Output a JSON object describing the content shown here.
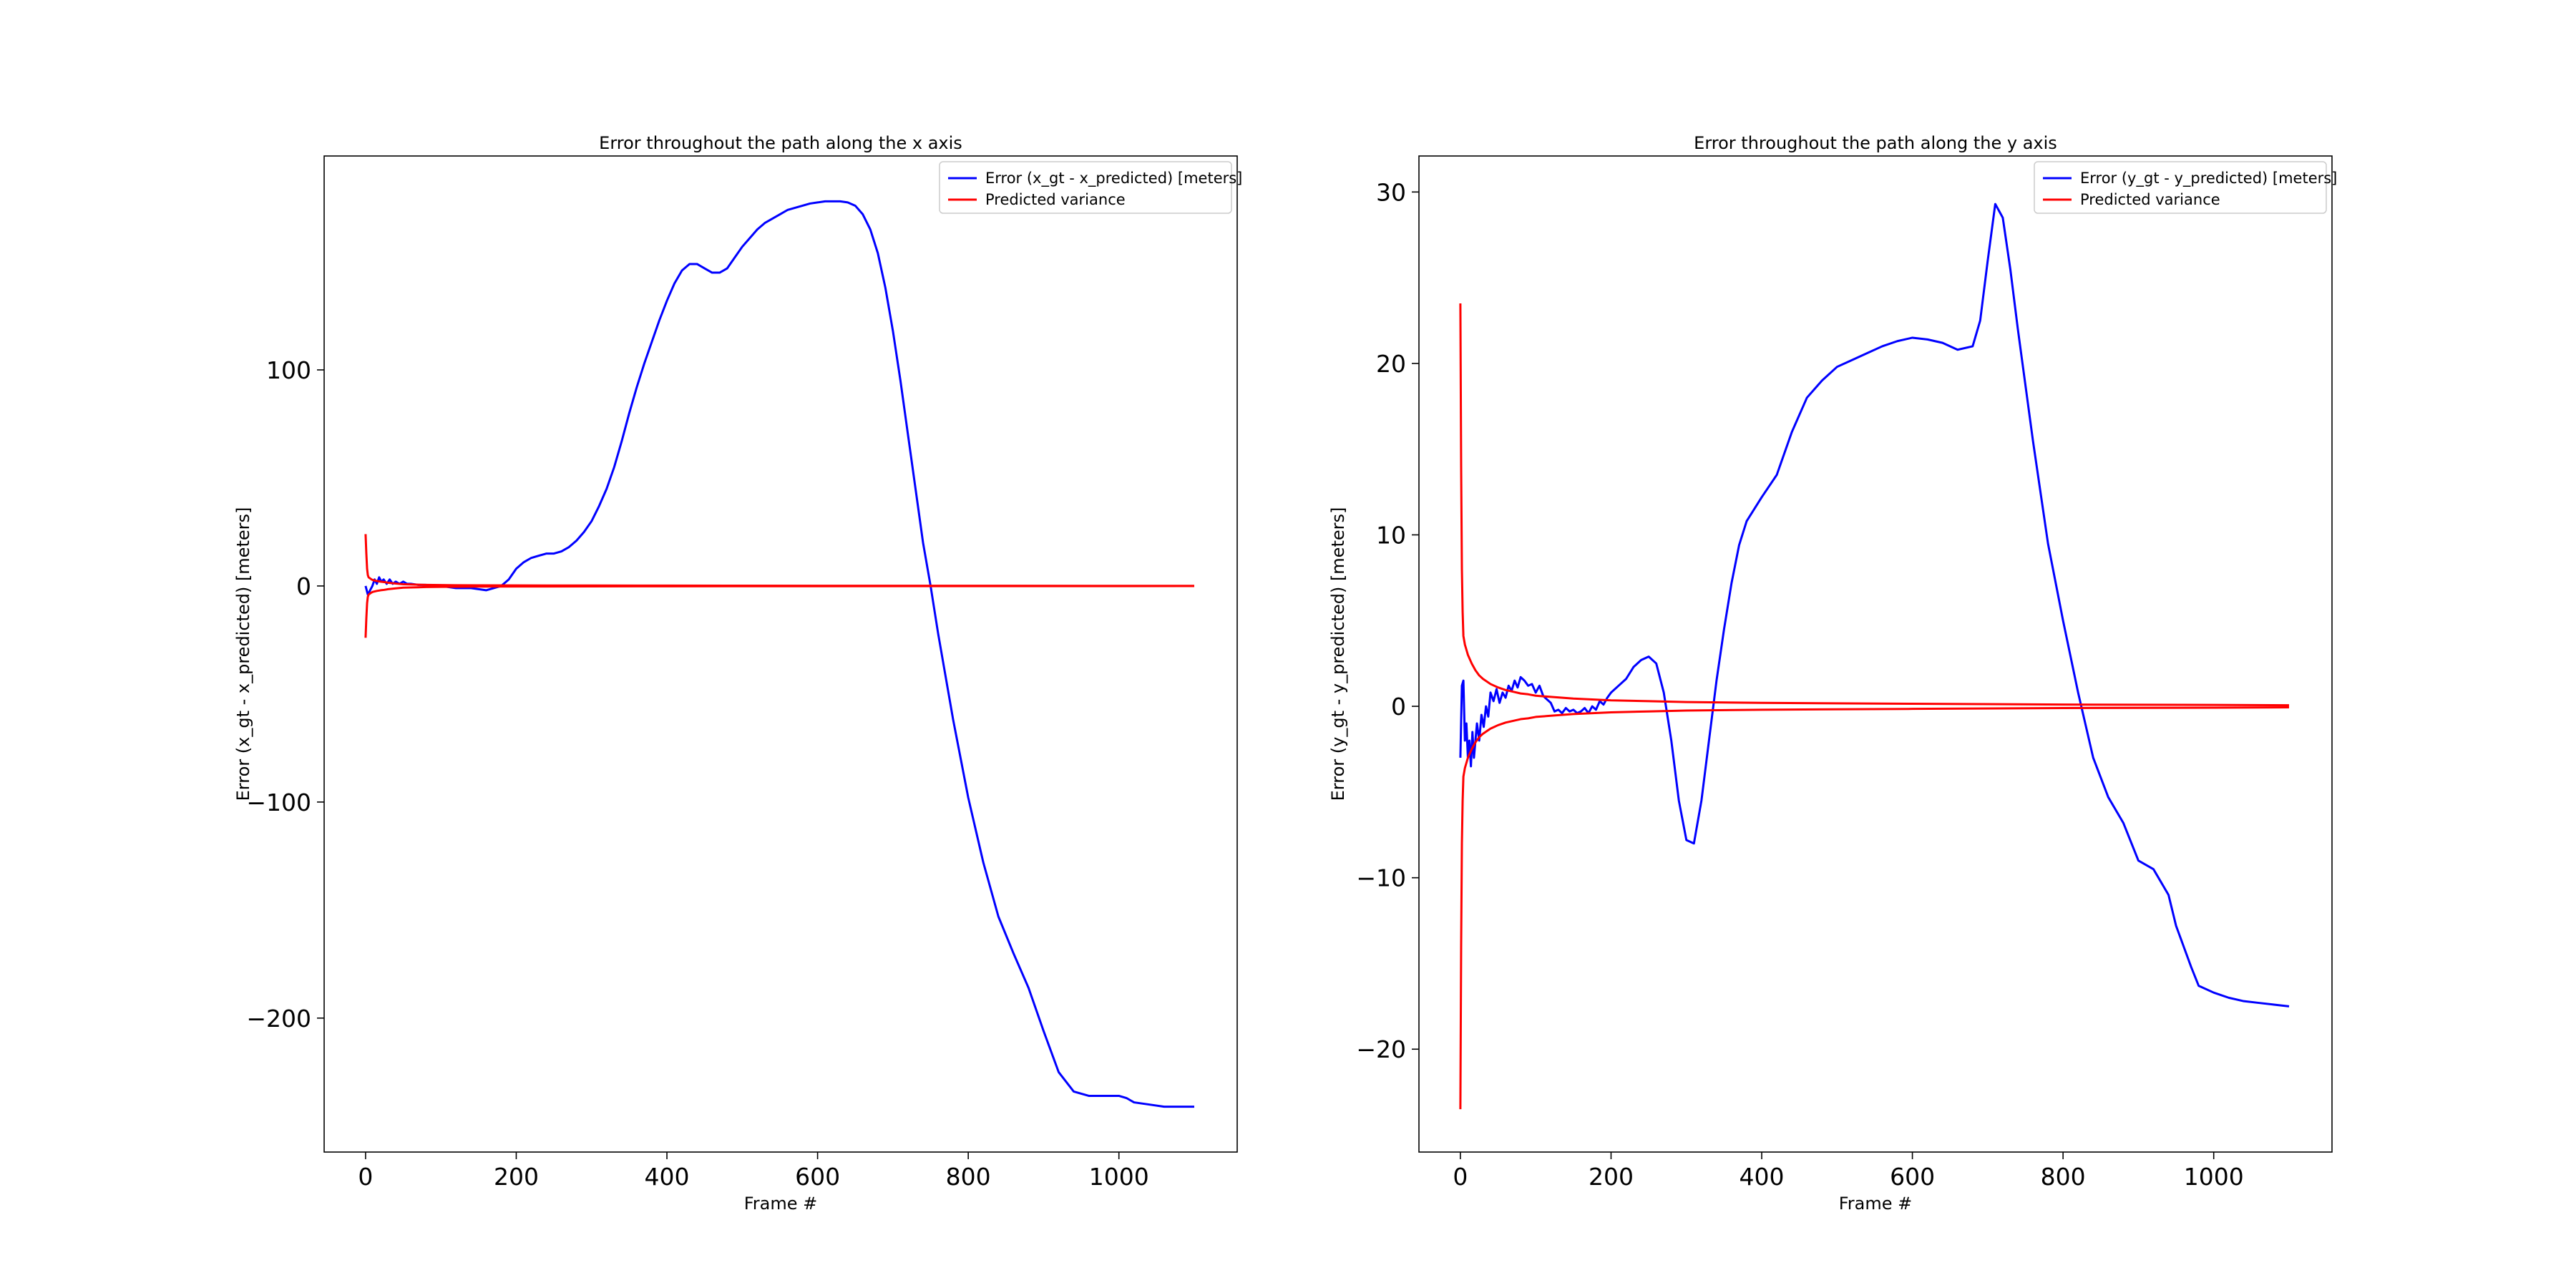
{
  "figure": {
    "background": "#ffffff"
  },
  "chart_data": [
    {
      "type": "line",
      "title": "Error throughout the path along the x axis",
      "xlabel": "Frame #",
      "ylabel": "Error (x_gt - x_predicted) [meters]",
      "xlim": [
        -55,
        1157
      ],
      "ylim": [
        -262,
        199
      ],
      "xticks": [
        0,
        200,
        400,
        600,
        800,
        1000
      ],
      "yticks": [
        -200,
        -100,
        0,
        100
      ],
      "xtick_labels": [
        "0",
        "200",
        "400",
        "600",
        "800",
        "1000"
      ],
      "ytick_labels": [
        "−200",
        "−100",
        "0",
        "100"
      ],
      "grid": false,
      "legend_position": "top-right",
      "series": [
        {
          "name": "Error (x_gt - x_predicted) [meters]",
          "color": "#0000ff",
          "x": [
            0,
            3,
            6,
            9,
            12,
            15,
            18,
            21,
            24,
            28,
            32,
            36,
            40,
            45,
            50,
            55,
            60,
            70,
            80,
            90,
            100,
            120,
            140,
            160,
            170,
            180,
            190,
            200,
            210,
            220,
            230,
            240,
            250,
            260,
            270,
            280,
            290,
            300,
            310,
            320,
            330,
            340,
            350,
            360,
            370,
            380,
            390,
            400,
            410,
            420,
            430,
            440,
            450,
            460,
            470,
            480,
            490,
            500,
            510,
            520,
            530,
            540,
            550,
            560,
            570,
            580,
            590,
            600,
            610,
            620,
            630,
            640,
            650,
            660,
            670,
            680,
            690,
            700,
            710,
            720,
            730,
            740,
            750,
            760,
            770,
            780,
            790,
            800,
            820,
            840,
            860,
            880,
            900,
            920,
            940,
            960,
            980,
            1000,
            1010,
            1020,
            1040,
            1060,
            1080,
            1100
          ],
          "y": [
            0,
            -4,
            -2,
            0,
            3,
            1,
            4,
            2,
            3,
            1,
            3,
            1,
            2,
            1,
            2,
            1,
            1,
            0.5,
            0.5,
            0,
            0,
            -1,
            -1,
            -2,
            -1,
            0,
            3,
            8,
            11,
            13,
            14,
            15,
            15,
            16,
            18,
            21,
            25,
            30,
            37,
            45,
            55,
            67,
            80,
            92,
            103,
            113,
            123,
            132,
            140,
            146,
            149,
            149,
            147,
            145,
            145,
            147,
            152,
            157,
            161,
            165,
            168,
            170,
            172,
            174,
            175,
            176,
            177,
            177.5,
            178,
            178,
            178,
            177.5,
            176,
            172,
            165,
            154,
            138,
            118,
            95,
            70,
            45,
            20,
            0,
            -22,
            -42,
            -62,
            -80,
            -98,
            -128,
            -153,
            -170,
            -186,
            -206,
            -225,
            -234,
            -236,
            -236,
            -236,
            -237,
            -239,
            -240,
            -241,
            -241,
            -241
          ]
        },
        {
          "name": "Predicted variance",
          "color": "#ff0000",
          "x": [
            0,
            1,
            2,
            3,
            4,
            6,
            8,
            10,
            15,
            20,
            25,
            30,
            40,
            50,
            60,
            70,
            80,
            90,
            100,
            120,
            150,
            200,
            300,
            400,
            600,
            800,
            1000,
            1100
          ],
          "y": [
            24,
            15,
            8,
            5,
            4,
            3.5,
            3,
            2.7,
            2.3,
            2,
            1.8,
            1.5,
            1.1,
            0.8,
            0.7,
            0.6,
            0.5,
            0.45,
            0.4,
            0.35,
            0.3,
            0.25,
            0.2,
            0.15,
            0.1,
            0.08,
            0.06,
            0.05
          ],
          "mirrored": true
        }
      ]
    },
    {
      "type": "line",
      "title": "Error throughout the path along the y axis",
      "xlabel": "Frame #",
      "ylabel": "Error (y_gt - y_predicted) [meters]",
      "xlim": [
        -55,
        1157
      ],
      "ylim": [
        -26,
        32.1
      ],
      "xticks": [
        0,
        200,
        400,
        600,
        800,
        1000
      ],
      "yticks": [
        -20,
        -10,
        0,
        10,
        20,
        30
      ],
      "xtick_labels": [
        "0",
        "200",
        "400",
        "600",
        "800",
        "1000"
      ],
      "ytick_labels": [
        "−20",
        "−10",
        "0",
        "10",
        "20",
        "30"
      ],
      "grid": false,
      "legend_position": "top-right",
      "series": [
        {
          "name": "Error (y_gt - y_predicted) [meters]",
          "color": "#0000ff",
          "x": [
            0,
            2,
            4,
            6,
            8,
            10,
            12,
            14,
            16,
            18,
            20,
            22,
            25,
            28,
            31,
            34,
            37,
            40,
            44,
            48,
            52,
            56,
            60,
            64,
            68,
            72,
            76,
            80,
            85,
            90,
            95,
            100,
            105,
            110,
            115,
            120,
            125,
            130,
            135,
            140,
            145,
            150,
            155,
            160,
            165,
            170,
            175,
            180,
            185,
            190,
            195,
            200,
            210,
            220,
            230,
            240,
            250,
            260,
            270,
            280,
            290,
            300,
            310,
            320,
            330,
            340,
            350,
            360,
            370,
            380,
            390,
            400,
            420,
            440,
            460,
            480,
            500,
            520,
            540,
            560,
            580,
            600,
            620,
            640,
            660,
            680,
            690,
            700,
            710,
            720,
            730,
            740,
            760,
            780,
            800,
            820,
            840,
            860,
            880,
            900,
            920,
            940,
            950,
            960,
            970,
            980,
            1000,
            1020,
            1040,
            1060,
            1080,
            1100
          ],
          "y": [
            -3,
            1.2,
            1.5,
            -2,
            -1,
            -3,
            -2,
            -3.5,
            -1.5,
            -3,
            -2,
            -1,
            -2,
            -0.5,
            -1.2,
            0,
            -0.6,
            0.8,
            0.3,
            1,
            0.2,
            0.8,
            0.5,
            1.2,
            0.9,
            1.5,
            1.1,
            1.7,
            1.5,
            1.2,
            1.3,
            0.8,
            1.2,
            0.6,
            0.4,
            0.2,
            -0.3,
            -0.2,
            -0.4,
            -0.1,
            -0.3,
            -0.2,
            -0.4,
            -0.3,
            -0.1,
            -0.4,
            0,
            -0.2,
            0.3,
            0.1,
            0.5,
            0.8,
            1.2,
            1.6,
            2.3,
            2.7,
            2.9,
            2.5,
            0.8,
            -2,
            -5.5,
            -7.8,
            -8,
            -5.5,
            -2,
            1.5,
            4.5,
            7.2,
            9.4,
            10.8,
            11.5,
            12.2,
            13.5,
            16,
            18,
            19,
            19.8,
            20.2,
            20.6,
            21,
            21.3,
            21.5,
            21.4,
            21.2,
            20.8,
            21,
            22.5,
            26,
            29.3,
            28.5,
            25.5,
            22,
            15.5,
            9.5,
            5,
            0.8,
            -3,
            -5.3,
            -6.8,
            -9,
            -9.5,
            -11,
            -12.8,
            -14,
            -15.2,
            -16.3,
            -16.7,
            -17,
            -17.2,
            -17.3,
            -17.4,
            -17.5
          ]
        },
        {
          "name": "Predicted variance",
          "color": "#ff0000",
          "x": [
            0,
            1,
            2,
            3,
            4,
            6,
            8,
            10,
            15,
            20,
            25,
            30,
            40,
            50,
            60,
            70,
            80,
            90,
            100,
            120,
            150,
            200,
            250,
            300,
            400,
            600,
            800,
            1000,
            1100
          ],
          "y": [
            23.5,
            14,
            8,
            5.5,
            4.1,
            3.6,
            3.3,
            3,
            2.5,
            2.1,
            1.8,
            1.6,
            1.3,
            1.1,
            0.95,
            0.85,
            0.75,
            0.7,
            0.62,
            0.55,
            0.45,
            0.35,
            0.3,
            0.25,
            0.2,
            0.15,
            0.1,
            0.08,
            0.06
          ],
          "mirrored": true
        }
      ]
    }
  ]
}
